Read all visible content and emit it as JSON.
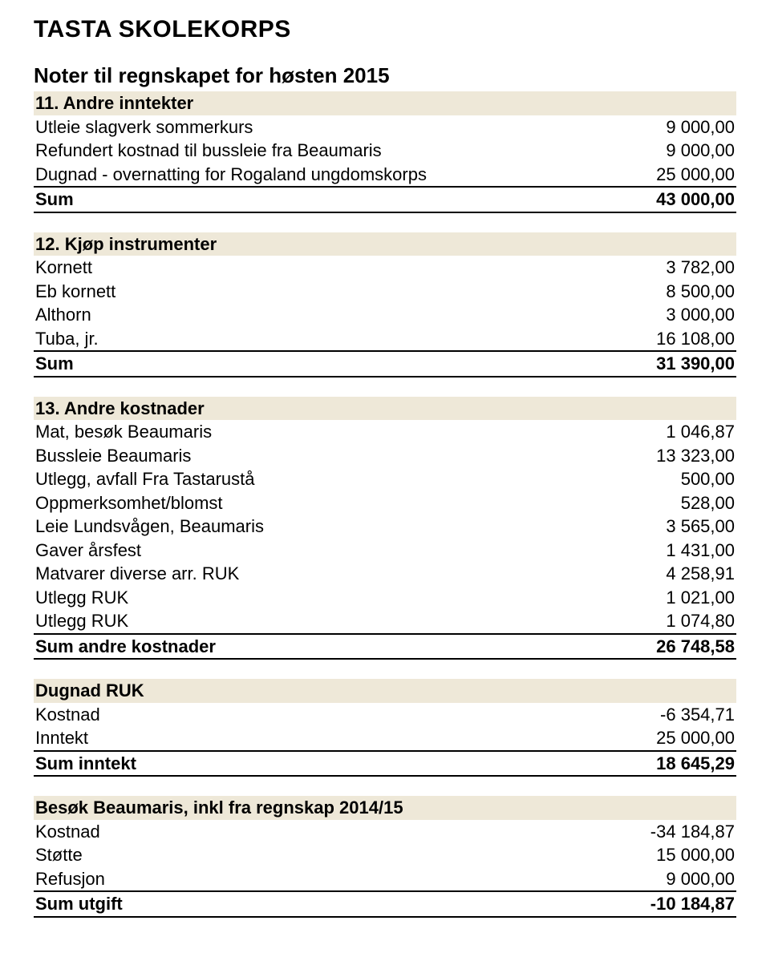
{
  "title": "TASTA SKOLEKORPS",
  "subtitle": "Noter til regnskapet for høsten 2015",
  "sec11": {
    "header": "11. Andre inntekter",
    "rows": [
      {
        "label": "Utleie slagverk sommerkurs",
        "val": "9 000,00"
      },
      {
        "label": "Refundert kostnad til bussleie fra Beaumaris",
        "val": "9 000,00"
      },
      {
        "label": "Dugnad - overnatting for Rogaland ungdomskorps",
        "val": "25 000,00"
      }
    ],
    "sum_label": "Sum",
    "sum_val": "43 000,00"
  },
  "sec12": {
    "header": "12. Kjøp instrumenter",
    "rows": [
      {
        "label": "Kornett",
        "val": "3 782,00"
      },
      {
        "label": "Eb kornett",
        "val": "8 500,00"
      },
      {
        "label": "Althorn",
        "val": "3 000,00"
      },
      {
        "label": "Tuba, jr.",
        "val": "16 108,00"
      }
    ],
    "sum_label": "Sum",
    "sum_val": "31 390,00"
  },
  "sec13": {
    "header": "13. Andre kostnader",
    "rows": [
      {
        "label": "Mat, besøk Beaumaris",
        "val": "1 046,87"
      },
      {
        "label": "Bussleie Beaumaris",
        "val": "13 323,00"
      },
      {
        "label": "Utlegg, avfall Fra Tastarustå",
        "val": "500,00"
      },
      {
        "label": "Oppmerksomhet/blomst",
        "val": "528,00"
      },
      {
        "label": "Leie Lundsvågen, Beaumaris",
        "val": "3 565,00"
      },
      {
        "label": "Gaver årsfest",
        "val": "1 431,00"
      },
      {
        "label": "Matvarer diverse arr. RUK",
        "val": "4 258,91"
      },
      {
        "label": "Utlegg RUK",
        "val": "1 021,00"
      },
      {
        "label": "Utlegg RUK",
        "val": "1 074,80"
      }
    ],
    "sum_label": "Sum andre kostnader",
    "sum_val": "26 748,58"
  },
  "dugnad": {
    "header": "Dugnad RUK",
    "rows": [
      {
        "label": "Kostnad",
        "val": "-6 354,71"
      },
      {
        "label": "Inntekt",
        "val": "25 000,00"
      }
    ],
    "sum_label": "Sum inntekt",
    "sum_val": "18 645,29"
  },
  "besok": {
    "header": "Besøk Beaumaris, inkl fra regnskap 2014/15",
    "rows": [
      {
        "label": "Kostnad",
        "val": "-34 184,87"
      },
      {
        "label": "Støtte",
        "val": "15 000,00"
      },
      {
        "label": "Refusjon",
        "val": "9 000,00"
      }
    ],
    "sum_label": "Sum utgift",
    "sum_val": "-10 184,87"
  }
}
